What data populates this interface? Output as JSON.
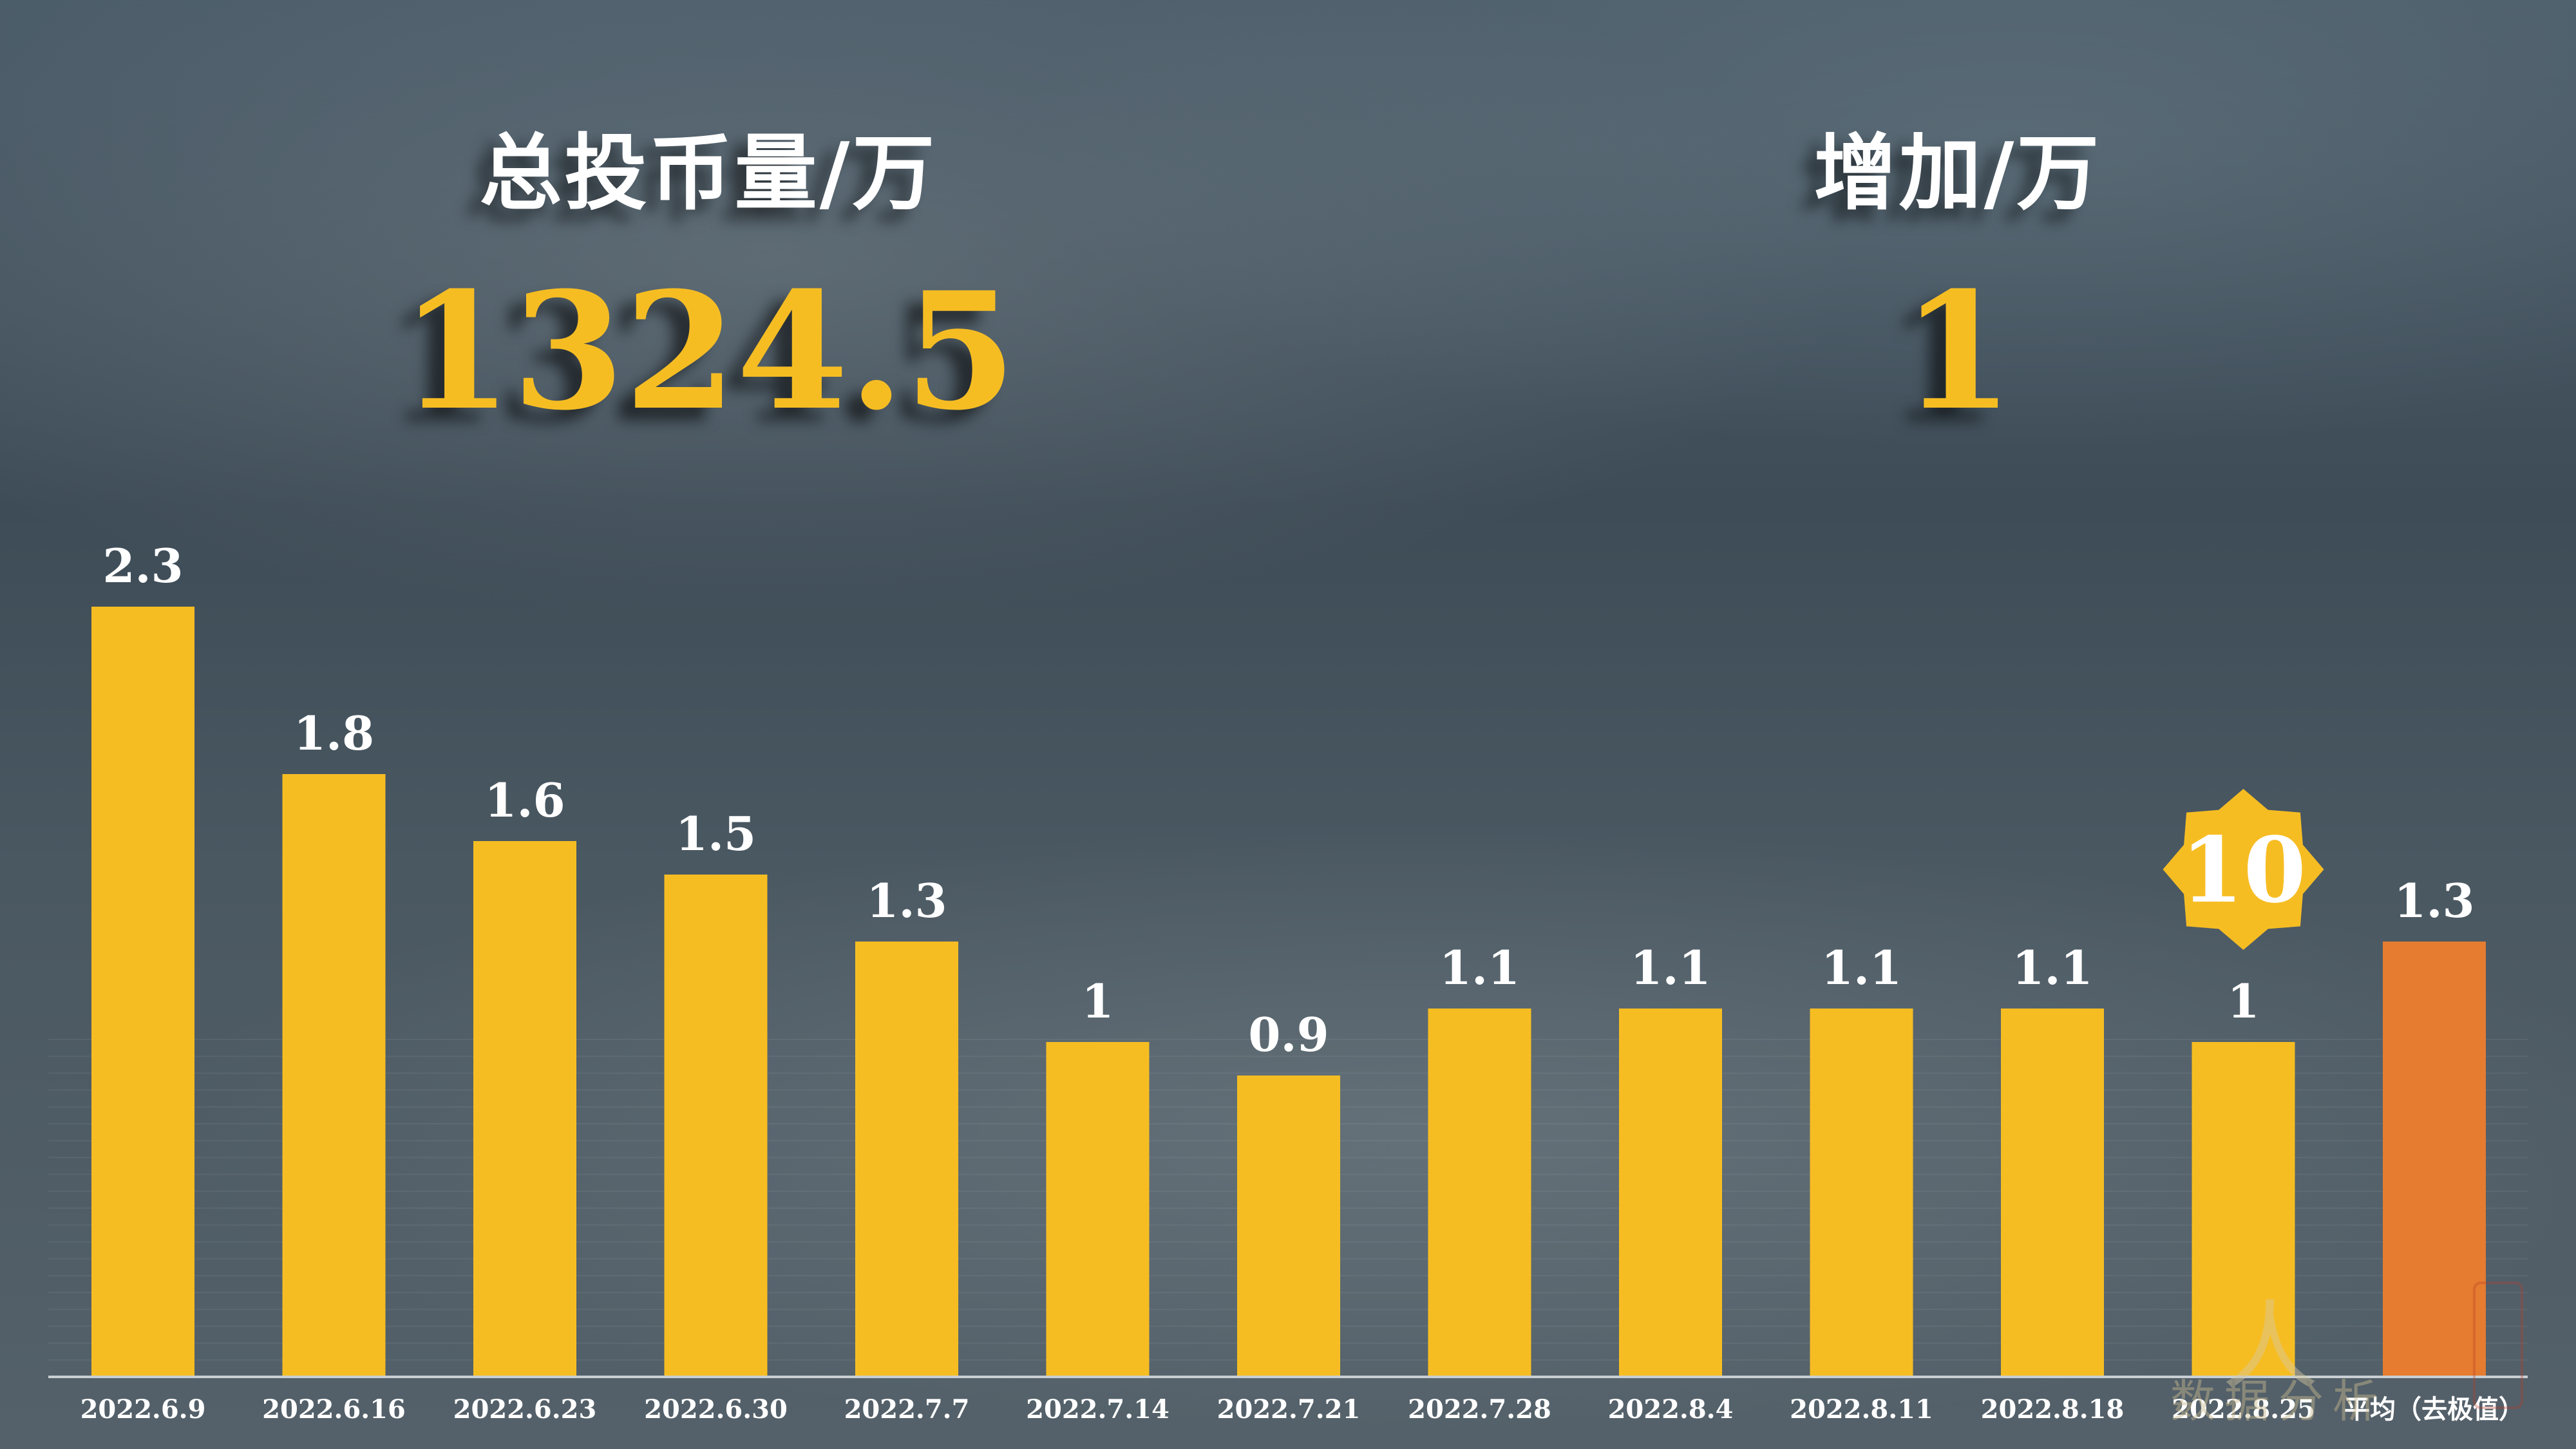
{
  "kpis": {
    "total": {
      "label": "总投币量/万",
      "value": "1324.5"
    },
    "increase": {
      "label": "增加/万",
      "value": "1"
    }
  },
  "badge": {
    "text": "10",
    "color": "#f6bd23"
  },
  "colors": {
    "bar": "#f6bd23",
    "highlight_bar": "#e57c30",
    "accent": "#f6bd23"
  },
  "chart_data": {
    "type": "bar",
    "categories": [
      "2022.6.9",
      "2022.6.16",
      "2022.6.23",
      "2022.6.30",
      "2022.7.7",
      "2022.7.14",
      "2022.7.21",
      "2022.7.28",
      "2022.8.4",
      "2022.8.11",
      "2022.8.18",
      "2022.8.25",
      "平均（去极值）"
    ],
    "values": [
      2.3,
      1.8,
      1.6,
      1.5,
      1.3,
      1,
      0.9,
      1.1,
      1.1,
      1.1,
      1.1,
      1,
      1.3
    ],
    "labels": [
      "2.3",
      "1.8",
      "1.6",
      "1.5",
      "1.3",
      "1",
      "0.9",
      "1.1",
      "1.1",
      "1.1",
      "1.1",
      "1",
      "1.3"
    ],
    "highlight_index": 12,
    "badge_index": 11,
    "ylim": [
      0,
      2.5
    ],
    "grid": true,
    "legend": "none",
    "title": "",
    "xlabel": "",
    "ylabel": ""
  },
  "watermark": {
    "big": "人",
    "small": "数据分析"
  }
}
